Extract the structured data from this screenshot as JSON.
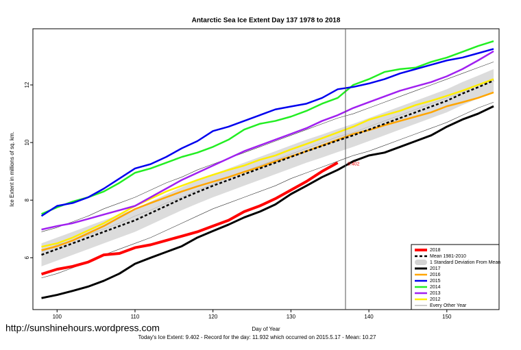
{
  "chart_data": {
    "type": "line",
    "title": "Antarctic Sea Ice Extent Day 137 1978 to 2018",
    "x_label": "Day of Year",
    "y_label": "Ice Extent in millions of sq. km.",
    "footer": "Today's Ice Extent: 9.402  - Record for the day: 11.932 which occurred on 2015.5.17  - Mean: 10.27",
    "watermark": "http://sunshinehours.wordpress.com",
    "annotation": "9.402",
    "vline": 137,
    "legend_position": "bottom-right",
    "xlim": [
      96.9,
      156.7
    ],
    "xticks": [
      100,
      110,
      120,
      130,
      140,
      150
    ],
    "ylim": [
      4.2,
      13.95
    ],
    "yticks": [
      6,
      8,
      10,
      12
    ],
    "x": [
      98,
      100,
      102,
      104,
      106,
      108,
      110,
      112,
      114,
      116,
      118,
      120,
      122,
      124,
      126,
      128,
      130,
      132,
      134,
      136,
      138,
      140,
      142,
      144,
      146,
      148,
      150,
      152,
      154,
      156
    ],
    "band": {
      "name": "1 Standard Deviation From Mean",
      "color": "#d3d3d3",
      "lower": [
        5.7,
        5.9,
        6.1,
        6.3,
        6.5,
        6.7,
        6.9,
        7.15,
        7.4,
        7.65,
        7.88,
        8.1,
        8.3,
        8.5,
        8.7,
        8.9,
        9.1,
        9.3,
        9.48,
        9.67,
        9.85,
        10.05,
        10.25,
        10.45,
        10.65,
        10.85,
        11.05,
        11.3,
        11.52,
        11.75
      ],
      "upper": [
        6.5,
        6.7,
        6.9,
        7.1,
        7.3,
        7.5,
        7.7,
        7.95,
        8.2,
        8.45,
        8.68,
        8.9,
        9.1,
        9.3,
        9.5,
        9.7,
        9.9,
        10.1,
        10.28,
        10.47,
        10.65,
        10.85,
        11.05,
        11.25,
        11.45,
        11.65,
        11.85,
        12.1,
        12.32,
        12.55
      ]
    },
    "other_years": {
      "name": "Every Other Year",
      "color": "#333333",
      "lines": [
        [
          6.9,
          7.05,
          7.25,
          7.45,
          7.7,
          7.9,
          8.1,
          8.35,
          8.6,
          8.8,
          9.05,
          9.25,
          9.45,
          9.65,
          9.85,
          10.05,
          10.25,
          10.45,
          10.65,
          10.85,
          11.0,
          11.2,
          11.4,
          11.6,
          11.8,
          12.0,
          12.2,
          12.4,
          12.6,
          12.8
        ],
        [
          5.3,
          5.45,
          5.65,
          5.85,
          6.1,
          6.3,
          6.5,
          6.7,
          6.95,
          7.2,
          7.45,
          7.7,
          7.9,
          8.1,
          8.3,
          8.5,
          8.75,
          8.95,
          9.15,
          9.35,
          9.55,
          9.7,
          9.9,
          10.1,
          10.3,
          10.5,
          10.7,
          10.95,
          11.2,
          11.4
        ],
        [
          6.2,
          6.45,
          6.6,
          6.8,
          7.0,
          7.2,
          7.45,
          7.65,
          7.9,
          8.1,
          8.35,
          8.55,
          8.8,
          9.0,
          9.2,
          9.4,
          9.6,
          9.8,
          10.0,
          10.2,
          10.35,
          10.55,
          10.75,
          10.95,
          11.15,
          11.35,
          11.55,
          11.75,
          12.0,
          12.2
        ]
      ]
    },
    "series": [
      {
        "name": "2018",
        "color": "#ff0000",
        "width": 4,
        "values": [
          5.43,
          5.6,
          5.7,
          5.85,
          6.1,
          6.15,
          6.35,
          6.45,
          6.6,
          6.75,
          6.9,
          7.1,
          7.3,
          7.6,
          7.8,
          8.05,
          8.35,
          8.65,
          9.0,
          9.3,
          null,
          null,
          null,
          null,
          null,
          null,
          null,
          null,
          null,
          null
        ]
      },
      {
        "name": "Mean 1981-2010",
        "color": "#000000",
        "width": 2.5,
        "dashed": true,
        "values": [
          6.1,
          6.3,
          6.5,
          6.7,
          6.9,
          7.1,
          7.3,
          7.55,
          7.8,
          8.05,
          8.28,
          8.5,
          8.7,
          8.9,
          9.1,
          9.3,
          9.5,
          9.7,
          9.88,
          10.07,
          10.25,
          10.45,
          10.65,
          10.85,
          11.05,
          11.25,
          11.45,
          11.7,
          11.92,
          12.15
        ]
      },
      {
        "name": "2017",
        "color": "#000000",
        "width": 3,
        "values": [
          4.6,
          4.71,
          4.85,
          5.0,
          5.2,
          5.45,
          5.79,
          6.0,
          6.2,
          6.4,
          6.7,
          6.93,
          7.15,
          7.4,
          7.6,
          7.85,
          8.21,
          8.5,
          8.8,
          9.05,
          9.35,
          9.55,
          9.65,
          9.85,
          10.05,
          10.25,
          10.55,
          10.8,
          11.0,
          11.26
        ]
      },
      {
        "name": "2016",
        "color": "#ffa500",
        "width": 2.5,
        "values": [
          6.26,
          6.4,
          6.6,
          6.85,
          7.1,
          7.4,
          7.69,
          7.9,
          8.1,
          8.3,
          8.48,
          8.64,
          8.8,
          8.98,
          9.15,
          9.35,
          9.52,
          9.7,
          9.9,
          10.1,
          10.3,
          10.43,
          10.6,
          10.75,
          10.9,
          11.05,
          11.26,
          11.4,
          11.55,
          11.74
        ]
      },
      {
        "name": "2015",
        "color": "#0000ee",
        "width": 2.5,
        "values": [
          7.45,
          7.8,
          7.9,
          8.1,
          8.4,
          8.75,
          9.1,
          9.25,
          9.5,
          9.8,
          10.05,
          10.4,
          10.55,
          10.75,
          10.95,
          11.15,
          11.25,
          11.35,
          11.55,
          11.85,
          11.93,
          12.05,
          12.2,
          12.4,
          12.55,
          12.7,
          12.85,
          12.95,
          13.1,
          13.25
        ]
      },
      {
        "name": "2014",
        "color": "#22ee22",
        "width": 2.5,
        "values": [
          7.52,
          7.75,
          7.95,
          8.1,
          8.3,
          8.6,
          8.95,
          9.1,
          9.3,
          9.5,
          9.65,
          9.85,
          10.1,
          10.45,
          10.65,
          10.75,
          10.9,
          11.1,
          11.35,
          11.55,
          12.0,
          12.2,
          12.45,
          12.55,
          12.6,
          12.8,
          12.95,
          13.15,
          13.35,
          13.52
        ]
      },
      {
        "name": "2013",
        "color": "#a020f0",
        "width": 2.5,
        "values": [
          6.98,
          7.1,
          7.2,
          7.35,
          7.5,
          7.65,
          7.8,
          8.1,
          8.4,
          8.7,
          8.95,
          9.2,
          9.45,
          9.7,
          9.9,
          10.1,
          10.3,
          10.5,
          10.75,
          10.95,
          11.2,
          11.4,
          11.6,
          11.8,
          11.95,
          12.1,
          12.3,
          12.55,
          12.85,
          13.17
        ]
      },
      {
        "name": "2012",
        "color": "#ffee00",
        "width": 2.5,
        "values": [
          6.38,
          6.5,
          6.7,
          6.95,
          7.2,
          7.5,
          7.8,
          8.05,
          8.3,
          8.5,
          8.7,
          8.88,
          9.05,
          9.2,
          9.4,
          9.55,
          9.76,
          9.95,
          10.15,
          10.35,
          10.55,
          10.79,
          10.95,
          11.1,
          11.3,
          11.45,
          11.62,
          11.8,
          12.0,
          12.2
        ]
      }
    ]
  }
}
